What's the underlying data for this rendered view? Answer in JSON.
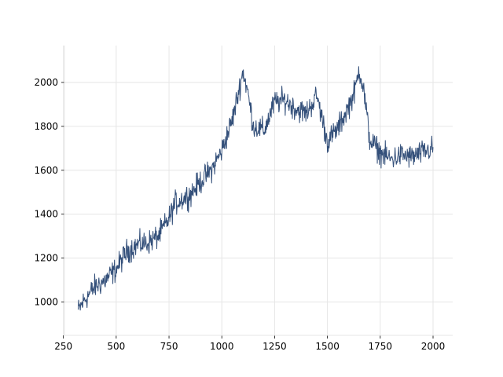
{
  "chart_data": {
    "type": "line",
    "title": "",
    "xlabel": "",
    "ylabel": "",
    "xlim": [
      255,
      2093
    ],
    "ylim": [
      848,
      2168
    ],
    "grid": true,
    "xticks": [
      250,
      500,
      750,
      1000,
      1250,
      1500,
      1750,
      2000
    ],
    "yticks": [
      1000,
      1200,
      1400,
      1600,
      1800,
      2000
    ],
    "x_start": 320,
    "x_end": 2000,
    "step": 2,
    "line_color": "#34507a",
    "grid_color": "#e6e6e6",
    "axis_color": "#e6e6e6",
    "trend_points": [
      [
        320,
        960
      ],
      [
        350,
        1010
      ],
      [
        400,
        1070
      ],
      [
        450,
        1100
      ],
      [
        500,
        1150
      ],
      [
        550,
        1230
      ],
      [
        600,
        1260
      ],
      [
        650,
        1270
      ],
      [
        700,
        1300
      ],
      [
        750,
        1380
      ],
      [
        780,
        1450
      ],
      [
        850,
        1490
      ],
      [
        900,
        1550
      ],
      [
        950,
        1600
      ],
      [
        1000,
        1690
      ],
      [
        1050,
        1830
      ],
      [
        1080,
        1960
      ],
      [
        1100,
        2050
      ],
      [
        1120,
        1970
      ],
      [
        1150,
        1800
      ],
      [
        1200,
        1780
      ],
      [
        1250,
        1910
      ],
      [
        1300,
        1920
      ],
      [
        1350,
        1880
      ],
      [
        1400,
        1860
      ],
      [
        1450,
        1940
      ],
      [
        1500,
        1730
      ],
      [
        1550,
        1790
      ],
      [
        1600,
        1890
      ],
      [
        1630,
        1960
      ],
      [
        1650,
        2060
      ],
      [
        1670,
        1980
      ],
      [
        1700,
        1740
      ],
      [
        1750,
        1680
      ],
      [
        1800,
        1650
      ],
      [
        1850,
        1670
      ],
      [
        1900,
        1660
      ],
      [
        1950,
        1680
      ],
      [
        2000,
        1700
      ]
    ],
    "noise_amplitude": 55
  }
}
